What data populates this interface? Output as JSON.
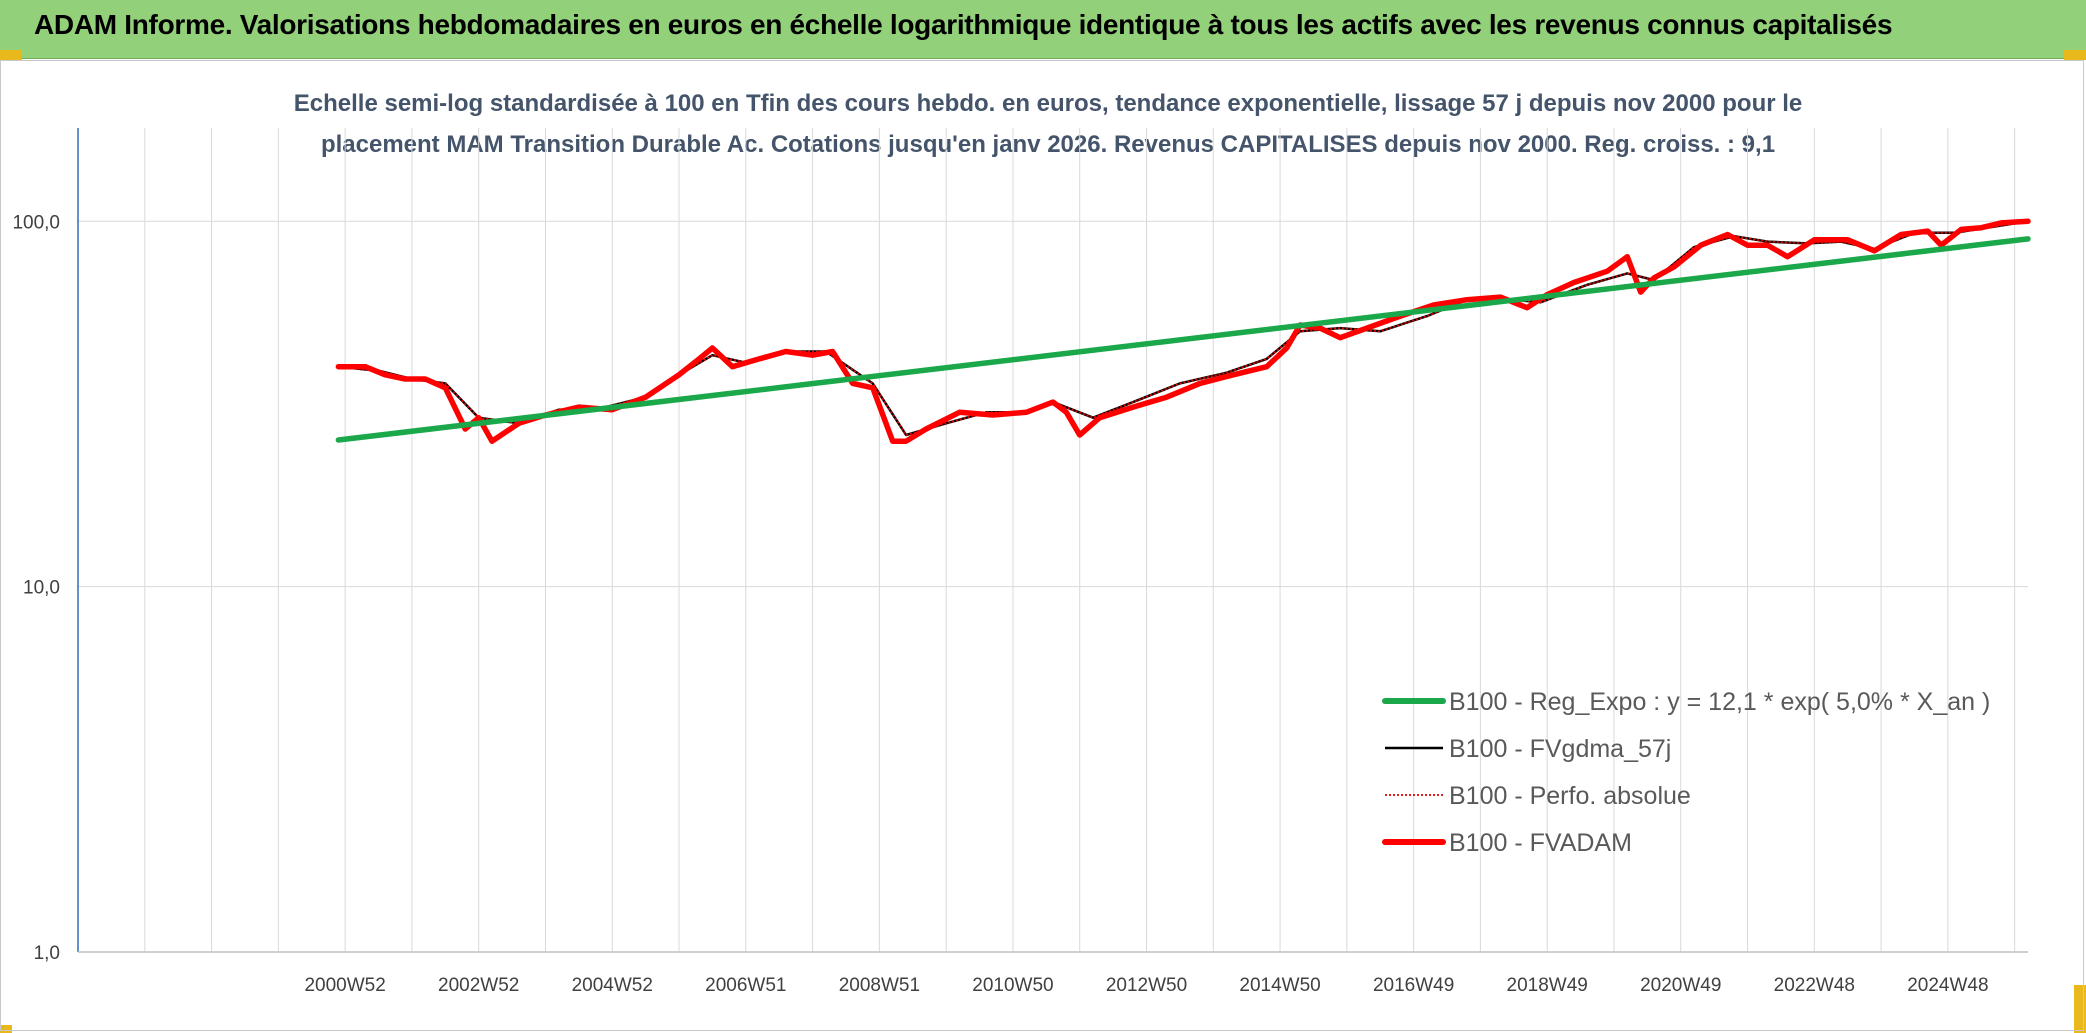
{
  "header": {
    "title": "ADAM Informe. Valorisations hebdomadaires en euros en échelle logarithmique identique à tous les actifs avec les revenus connus capitalisés"
  },
  "colors": {
    "banner": "#92d07a",
    "regression": "#1aa84a",
    "smoothed": "#000000",
    "perfo": "#e00000",
    "fvadam": "#ff0000",
    "grid": "#d9d9d9",
    "title_text": "#44546a"
  },
  "chart_data": {
    "type": "line",
    "title_line1": "Echelle semi-log standardisée à 100 en Tfin des cours hebdo. en euros, tendance exponentielle, lissage 57 j depuis nov 2000 pour le",
    "title_line2": "placement MAM Transition Durable Ac. Cotations jusqu'en janv 2026. Revenus CAPITALISES depuis nov 2000. Reg. croiss. : 9,1",
    "y_scale": "log",
    "ylim": [
      1,
      180
    ],
    "y_ticks": [
      1,
      10,
      100
    ],
    "y_tick_labels": [
      "1,0",
      "10,0",
      "100,0"
    ],
    "x_range": [
      1997.0,
      2026.2
    ],
    "x_tick_labels": [
      "2000W52",
      "2002W52",
      "2004W52",
      "2006W51",
      "2008W51",
      "2010W50",
      "2012W50",
      "2014W50",
      "2016W49",
      "2018W49",
      "2020W49",
      "2022W48",
      "2024W48"
    ],
    "x_tick_years": [
      2001.0,
      2003.0,
      2005.0,
      2007.0,
      2009.0,
      2011.0,
      2013.0,
      2015.0,
      2017.0,
      2019.0,
      2021.0,
      2023.0,
      2025.0
    ],
    "grid": true,
    "legend_position": "bottom-right",
    "series": [
      {
        "name": "B100 - Reg_Expo : y = 12,1 * exp( 5,0% *  X_an )",
        "color": "#1aa84a",
        "style": "thick",
        "x": [
          2000.9,
          2026.2
        ],
        "y": [
          25.2,
          89.5
        ]
      },
      {
        "name": "B100 - FVgdma_57j",
        "color": "#000000",
        "style": "thin",
        "x": [
          2000.9,
          2001.5,
          2002.0,
          2002.5,
          2003.0,
          2003.6,
          2004.2,
          2004.9,
          2005.5,
          2006.0,
          2006.5,
          2007.0,
          2007.6,
          2008.2,
          2008.9,
          2009.4,
          2010.0,
          2010.6,
          2011.2,
          2011.6,
          2012.2,
          2012.8,
          2013.5,
          2014.2,
          2014.8,
          2015.3,
          2015.9,
          2016.5,
          2017.2,
          2017.8,
          2018.5,
          2018.9,
          2019.6,
          2020.2,
          2020.6,
          2021.2,
          2021.8,
          2022.3,
          2022.9,
          2023.4,
          2023.9,
          2024.5,
          2025.1,
          2025.6,
          2026.2
        ],
        "y": [
          40,
          39,
          37,
          36,
          29,
          28,
          30.5,
          31,
          33,
          38,
          43,
          41,
          44,
          44,
          36,
          26,
          28,
          30,
          30,
          32,
          29,
          32,
          36,
          38.5,
          42,
          50,
          51,
          50,
          55,
          61,
          61,
          60,
          67,
          72,
          69,
          85,
          91,
          88,
          87,
          88,
          84,
          93,
          93,
          96,
          100
        ]
      },
      {
        "name": "B100 - Perfo. absolue",
        "color": "#e00000",
        "style": "dotted",
        "x": [
          2000.9,
          2001.5,
          2002.0,
          2002.5,
          2003.0,
          2003.6,
          2004.2,
          2004.9,
          2005.5,
          2006.0,
          2006.5,
          2007.0,
          2007.6,
          2008.2,
          2008.9,
          2009.4,
          2010.0,
          2010.6,
          2011.2,
          2011.6,
          2012.2,
          2012.8,
          2013.5,
          2014.2,
          2014.8,
          2015.3,
          2015.9,
          2016.5,
          2017.2,
          2017.8,
          2018.5,
          2018.9,
          2019.6,
          2020.2,
          2020.6,
          2021.2,
          2021.8,
          2022.3,
          2022.9,
          2023.4,
          2023.9,
          2024.5,
          2025.1,
          2025.6,
          2026.2
        ],
        "y": [
          40,
          39,
          37,
          36,
          29,
          28,
          30.5,
          31,
          33,
          38,
          43,
          41,
          44,
          44,
          36,
          26,
          28,
          30,
          30,
          32,
          29,
          32,
          36,
          38.5,
          42,
          50,
          51,
          50,
          55,
          61,
          61,
          60,
          67,
          72,
          69,
          85,
          91,
          88,
          87,
          88,
          84,
          93,
          93,
          96,
          100
        ]
      },
      {
        "name": "B100 - FVADAM",
        "color": "#ff0000",
        "style": "thick",
        "x": [
          2000.9,
          2001.3,
          2001.6,
          2001.9,
          2002.2,
          2002.5,
          2002.8,
          2003.0,
          2003.2,
          2003.6,
          2004.0,
          2004.5,
          2005.0,
          2005.5,
          2006.0,
          2006.3,
          2006.5,
          2006.8,
          2007.2,
          2007.6,
          2008.0,
          2008.3,
          2008.6,
          2008.9,
          2009.2,
          2009.4,
          2009.7,
          2010.2,
          2010.7,
          2011.2,
          2011.6,
          2011.8,
          2012.0,
          2012.3,
          2012.8,
          2013.3,
          2013.8,
          2014.3,
          2014.8,
          2015.1,
          2015.3,
          2015.6,
          2015.9,
          2016.3,
          2016.8,
          2017.3,
          2017.8,
          2018.3,
          2018.7,
          2019.0,
          2019.4,
          2019.9,
          2020.2,
          2020.4,
          2020.6,
          2020.9,
          2021.3,
          2021.7,
          2022.0,
          2022.3,
          2022.6,
          2023.0,
          2023.5,
          2023.9,
          2024.3,
          2024.7,
          2024.9,
          2025.2,
          2025.5,
          2025.8,
          2026.2
        ],
        "y": [
          40,
          40,
          38,
          37,
          37,
          35,
          27,
          29,
          25,
          28,
          29.5,
          31,
          30.5,
          33,
          38,
          42,
          45,
          40,
          42,
          44,
          43,
          44,
          36,
          35,
          25,
          25,
          27,
          30,
          29.5,
          30,
          32,
          30,
          26,
          29,
          31,
          33,
          36,
          38,
          40,
          45,
          52,
          51,
          48,
          51,
          55,
          59,
          61,
          62,
          58,
          63,
          68,
          73,
          80,
          64,
          70,
          75,
          86,
          92,
          86,
          86,
          80,
          89,
          89,
          83,
          92,
          94,
          86,
          95,
          96,
          99,
          100
        ]
      }
    ]
  }
}
